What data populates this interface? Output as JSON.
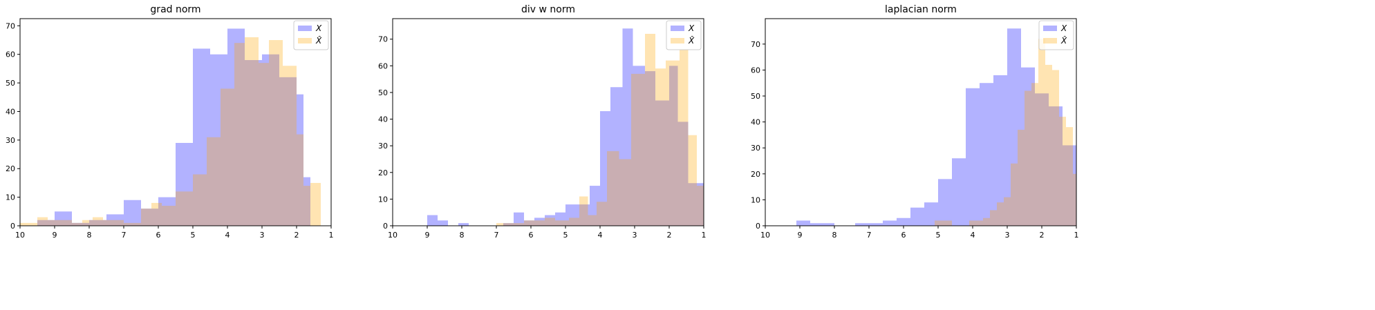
{
  "colors": {
    "X": "#0000ff",
    "Xhat": "#ffa500",
    "alpha": 0.3
  },
  "chart_data": [
    {
      "type": "bar",
      "title": "grad norm",
      "legend": [
        "X",
        "X̂"
      ],
      "legend_placement": "top-right",
      "x_axis": "reversed",
      "xlim": [
        10,
        1
      ],
      "ylim": [
        0,
        72.5
      ],
      "xticks": [
        "10",
        "9",
        "8",
        "7",
        "6",
        "5",
        "4",
        "3",
        "2",
        "1"
      ],
      "yticks": [
        0,
        10,
        20,
        30,
        40,
        50,
        60,
        70
      ],
      "series": [
        {
          "name": "X",
          "bins": [
            [
              9.5,
              9.0,
              2
            ],
            [
              9.0,
              8.5,
              5
            ],
            [
              8.5,
              8.0,
              1
            ],
            [
              8.0,
              7.5,
              2
            ],
            [
              7.5,
              7.0,
              4
            ],
            [
              7.0,
              6.5,
              9
            ],
            [
              6.5,
              6.0,
              6
            ],
            [
              6.0,
              5.5,
              10
            ],
            [
              5.5,
              5.0,
              29
            ],
            [
              5.0,
              4.5,
              62
            ],
            [
              4.5,
              4.0,
              60
            ],
            [
              4.0,
              3.5,
              69
            ],
            [
              3.5,
              3.0,
              58
            ],
            [
              3.0,
              2.5,
              60
            ],
            [
              2.5,
              2.0,
              52
            ],
            [
              2.0,
              1.8,
              46
            ],
            [
              1.8,
              1.6,
              17
            ]
          ]
        },
        {
          "name": "X̂",
          "bins": [
            [
              10.0,
              9.5,
              1
            ],
            [
              9.5,
              9.2,
              3
            ],
            [
              9.2,
              8.5,
              2
            ],
            [
              8.5,
              8.2,
              1
            ],
            [
              8.2,
              7.9,
              2
            ],
            [
              7.9,
              7.6,
              3
            ],
            [
              7.6,
              7.0,
              2
            ],
            [
              7.0,
              6.5,
              1
            ],
            [
              6.5,
              6.2,
              6
            ],
            [
              6.2,
              5.9,
              8
            ],
            [
              5.9,
              5.5,
              7
            ],
            [
              5.5,
              5.0,
              12
            ],
            [
              5.0,
              4.6,
              18
            ],
            [
              4.6,
              4.2,
              31
            ],
            [
              4.2,
              3.8,
              48
            ],
            [
              3.8,
              3.5,
              64
            ],
            [
              3.5,
              3.1,
              66
            ],
            [
              3.1,
              2.8,
              57
            ],
            [
              2.8,
              2.4,
              65
            ],
            [
              2.4,
              2.0,
              56
            ],
            [
              2.0,
              1.8,
              32
            ],
            [
              1.8,
              1.6,
              14
            ],
            [
              1.6,
              1.3,
              15
            ]
          ]
        }
      ]
    },
    {
      "type": "bar",
      "title": "div w norm",
      "legend": [
        "X",
        "X̂"
      ],
      "legend_placement": "top-right",
      "x_axis": "reversed",
      "xlim": [
        10,
        1
      ],
      "ylim": [
        0,
        77.7
      ],
      "xticks": [
        "10",
        "9",
        "8",
        "7",
        "6",
        "5",
        "4",
        "3",
        "2",
        "1"
      ],
      "yticks": [
        0,
        10,
        20,
        30,
        40,
        50,
        60,
        70
      ],
      "series": [
        {
          "name": "X",
          "bins": [
            [
              9.0,
              8.7,
              4
            ],
            [
              8.7,
              8.4,
              2
            ],
            [
              8.1,
              7.8,
              1
            ],
            [
              6.8,
              6.5,
              1
            ],
            [
              6.5,
              6.2,
              5
            ],
            [
              6.2,
              5.9,
              2
            ],
            [
              5.9,
              5.6,
              3
            ],
            [
              5.6,
              5.3,
              4
            ],
            [
              5.3,
              5.0,
              5
            ],
            [
              5.0,
              4.7,
              8
            ],
            [
              4.7,
              4.3,
              8
            ],
            [
              4.3,
              4.0,
              15
            ],
            [
              4.0,
              3.7,
              43
            ],
            [
              3.7,
              3.35,
              52
            ],
            [
              3.35,
              3.05,
              74
            ],
            [
              3.05,
              2.7,
              60
            ],
            [
              2.7,
              2.4,
              58
            ],
            [
              2.4,
              2.0,
              47
            ],
            [
              2.0,
              1.75,
              60
            ],
            [
              1.75,
              1.45,
              39
            ],
            [
              1.45,
              1.2,
              16
            ],
            [
              1.2,
              1.0,
              16
            ]
          ]
        },
        {
          "name": "X̂",
          "bins": [
            [
              7.0,
              6.7,
              1
            ],
            [
              6.7,
              6.2,
              1
            ],
            [
              6.2,
              5.9,
              2
            ],
            [
              5.9,
              5.6,
              2
            ],
            [
              5.6,
              5.3,
              3
            ],
            [
              5.3,
              4.9,
              2
            ],
            [
              4.9,
              4.6,
              3
            ],
            [
              4.6,
              4.35,
              11
            ],
            [
              4.35,
              4.1,
              4
            ],
            [
              4.1,
              3.8,
              9
            ],
            [
              3.8,
              3.45,
              28
            ],
            [
              3.45,
              3.1,
              25
            ],
            [
              3.1,
              2.7,
              57
            ],
            [
              2.7,
              2.4,
              72
            ],
            [
              2.4,
              2.1,
              59
            ],
            [
              2.1,
              1.7,
              62
            ],
            [
              1.7,
              1.45,
              66
            ],
            [
              1.45,
              1.2,
              34
            ],
            [
              1.2,
              1.0,
              15
            ]
          ]
        }
      ]
    },
    {
      "type": "bar",
      "title": "laplacian norm",
      "legend": [
        "X",
        "X̂"
      ],
      "legend_placement": "top-right",
      "x_axis": "reversed",
      "xlim": [
        10,
        1
      ],
      "ylim": [
        0,
        79.8
      ],
      "xticks": [
        "10",
        "9",
        "8",
        "7",
        "6",
        "5",
        "4",
        "3",
        "2",
        "1"
      ],
      "yticks": [
        0,
        10,
        20,
        30,
        40,
        50,
        60,
        70
      ],
      "series": [
        {
          "name": "X",
          "bins": [
            [
              9.1,
              8.7,
              2
            ],
            [
              8.7,
              8.4,
              1
            ],
            [
              8.4,
              8.0,
              1
            ],
            [
              7.4,
              7.0,
              1
            ],
            [
              7.0,
              6.6,
              1
            ],
            [
              6.6,
              6.2,
              2
            ],
            [
              6.2,
              5.8,
              3
            ],
            [
              5.8,
              5.4,
              7
            ],
            [
              5.4,
              5.0,
              9
            ],
            [
              5.0,
              4.6,
              18
            ],
            [
              4.6,
              4.2,
              26
            ],
            [
              4.2,
              3.8,
              53
            ],
            [
              3.8,
              3.4,
              55
            ],
            [
              3.4,
              3.0,
              58
            ],
            [
              3.0,
              2.6,
              76
            ],
            [
              2.6,
              2.2,
              61
            ],
            [
              2.2,
              1.8,
              51
            ],
            [
              1.8,
              1.4,
              46
            ],
            [
              1.4,
              1.0,
              31
            ]
          ]
        },
        {
          "name": "X̂",
          "bins": [
            [
              5.1,
              4.6,
              2
            ],
            [
              4.1,
              3.7,
              2
            ],
            [
              3.7,
              3.5,
              3
            ],
            [
              3.5,
              3.3,
              6
            ],
            [
              3.3,
              3.1,
              9
            ],
            [
              3.1,
              2.9,
              11
            ],
            [
              2.9,
              2.7,
              24
            ],
            [
              2.7,
              2.5,
              37
            ],
            [
              2.5,
              2.3,
              52
            ],
            [
              2.3,
              2.1,
              55
            ],
            [
              2.1,
              1.9,
              72
            ],
            [
              1.9,
              1.7,
              62
            ],
            [
              1.7,
              1.5,
              60
            ],
            [
              1.5,
              1.3,
              42
            ],
            [
              1.3,
              1.1,
              38
            ],
            [
              1.1,
              1.0,
              20
            ]
          ]
        }
      ]
    }
  ]
}
